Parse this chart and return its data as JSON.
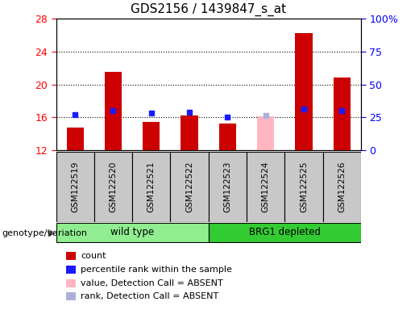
{
  "title": "GDS2156 / 1439847_s_at",
  "samples": [
    "GSM122519",
    "GSM122520",
    "GSM122521",
    "GSM122522",
    "GSM122523",
    "GSM122524",
    "GSM122525",
    "GSM122526"
  ],
  "bar_values": [
    14.8,
    21.5,
    15.5,
    16.2,
    15.3,
    null,
    26.2,
    20.8
  ],
  "absent_bar_values": [
    null,
    null,
    null,
    null,
    null,
    16.1,
    null,
    null
  ],
  "absent_bar_color": "#ffb6c1",
  "percentile_values": [
    16.3,
    16.8,
    16.5,
    16.6,
    16.0,
    null,
    17.0,
    16.8
  ],
  "absent_percentile_values": [
    null,
    null,
    null,
    null,
    null,
    16.2,
    null,
    null
  ],
  "bar_color": "#cc0000",
  "percentile_color": "#1a1aff",
  "absent_percentile_color": "#aab0d8",
  "ylim": [
    12,
    28
  ],
  "yticks": [
    12,
    16,
    20,
    24,
    28
  ],
  "y2lim": [
    0,
    100
  ],
  "y2ticks": [
    0,
    25,
    50,
    75,
    100
  ],
  "y2labels": [
    "0",
    "25",
    "50",
    "75",
    "100%"
  ],
  "groups": [
    {
      "label": "wild type",
      "start": 0,
      "end": 3,
      "color": "#90ee90"
    },
    {
      "label": "BRG1 depleted",
      "start": 4,
      "end": 7,
      "color": "#33cc33"
    }
  ],
  "group_label": "genotype/variation",
  "legend_items": [
    {
      "label": "count",
      "color": "#cc0000"
    },
    {
      "label": "percentile rank within the sample",
      "color": "#1a1aff"
    },
    {
      "label": "value, Detection Call = ABSENT",
      "color": "#ffb6c1"
    },
    {
      "label": "rank, Detection Call = ABSENT",
      "color": "#aab0d8"
    }
  ],
  "bar_width": 0.45,
  "marker_size": 5,
  "gray_col_color": "#c8c8c8",
  "grid_color": "#000000",
  "title_fontsize": 11
}
